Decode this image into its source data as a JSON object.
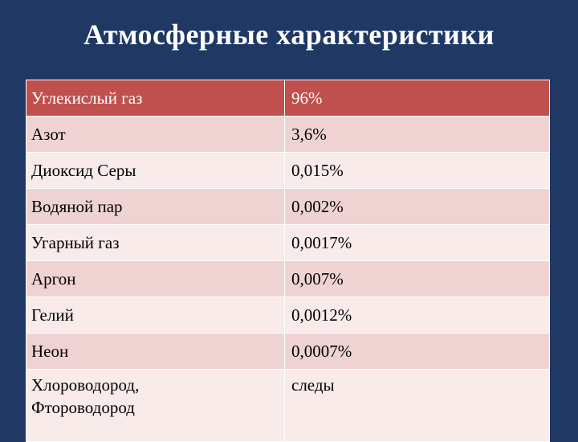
{
  "slide": {
    "title": "Атмосферные характеристики"
  },
  "table": {
    "header": {
      "name": "Углекислый газ",
      "value": "96%"
    },
    "rows": [
      {
        "name": "Азот",
        "value": "3,6%"
      },
      {
        "name": "Диоксид Серы",
        "value": "0,015%"
      },
      {
        "name": "Водяной пар",
        "value": "0,002%"
      },
      {
        "name": "Угарный газ",
        "value": "0,0017%"
      },
      {
        "name": "Аргон",
        "value": "0,007%"
      },
      {
        "name": "Гелий",
        "value": "0,0012%"
      },
      {
        "name": "Неон",
        "value": "0,0007%"
      },
      {
        "name_line1": "Хлороводород,",
        "name_line2": "Фтороводород",
        "value": "следы"
      }
    ]
  },
  "colors": {
    "background": "#1f3864",
    "header_row": "#c0504d",
    "row_odd": "#efd3d2",
    "row_even": "#f8ebea",
    "title_text": "#ffffff"
  }
}
